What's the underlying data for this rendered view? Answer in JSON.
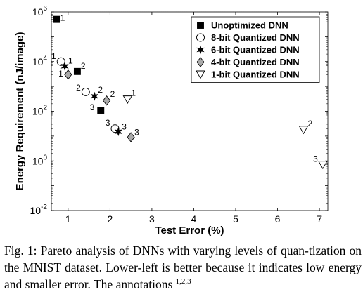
{
  "chart_data": {
    "type": "scatter",
    "xlabel": "Test Error (%)",
    "ylabel": "Energy Requirement (nJ/image)",
    "xlim": [
      0.6,
      7.2
    ],
    "ylim": [
      0.01,
      1000000
    ],
    "y_scale": "log",
    "x_ticks": [
      1,
      2,
      3,
      4,
      5,
      6,
      7
    ],
    "y_ticks": [
      {
        "value": 0.01,
        "base": "10",
        "exp": "-2"
      },
      {
        "value": 1,
        "base": "10",
        "exp": "0"
      },
      {
        "value": 100,
        "base": "10",
        "exp": "2"
      },
      {
        "value": 10000,
        "base": "10",
        "exp": "4"
      },
      {
        "value": 1000000,
        "base": "10",
        "exp": "6"
      }
    ],
    "grid": true,
    "legend_position": "top-right",
    "series": [
      {
        "name": "Unoptimized DNN",
        "marker": "square",
        "color": "#000000",
        "points": [
          {
            "x": 0.73,
            "y": 500000,
            "label": "1"
          },
          {
            "x": 1.22,
            "y": 4000,
            "label": "2"
          },
          {
            "x": 1.78,
            "y": 110,
            "label": "3"
          }
        ]
      },
      {
        "name": "8-bit Quantized DNN",
        "marker": "circle",
        "color": "#000000",
        "points": [
          {
            "x": 0.83,
            "y": 10000,
            "label": "1"
          },
          {
            "x": 1.42,
            "y": 600,
            "label": "2"
          },
          {
            "x": 2.12,
            "y": 20,
            "label": "3"
          }
        ]
      },
      {
        "name": "6-bit Quantized DNN",
        "marker": "star",
        "color": "#000000",
        "points": [
          {
            "x": 0.92,
            "y": 6500,
            "label": "1"
          },
          {
            "x": 1.63,
            "y": 400,
            "label": "2"
          },
          {
            "x": 2.2,
            "y": 15,
            "label": "3"
          }
        ]
      },
      {
        "name": "4-bit Quantized DNN",
        "marker": "diamond",
        "color": "#aaaaaa",
        "points": [
          {
            "x": 1.0,
            "y": 3000,
            "label": "1"
          },
          {
            "x": 1.92,
            "y": 270,
            "label": "2"
          },
          {
            "x": 2.5,
            "y": 9,
            "label": "3"
          }
        ]
      },
      {
        "name": "1-bit Quantized DNN",
        "marker": "triangle-down",
        "color": "#ffffff",
        "points": [
          {
            "x": 2.42,
            "y": 300,
            "label": "1"
          },
          {
            "x": 6.62,
            "y": 18,
            "label": "2"
          },
          {
            "x": 7.08,
            "y": 0.7,
            "label": "3"
          }
        ]
      }
    ]
  },
  "caption": {
    "prefix": "Fig. 1: Pareto analysis of DNNs with varying levels of quan-tization on the MNIST dataset. Lower-left is better because it indicates low energy and smaller error. The annotations ",
    "sup": "1,2,3",
    "suffix": ""
  }
}
